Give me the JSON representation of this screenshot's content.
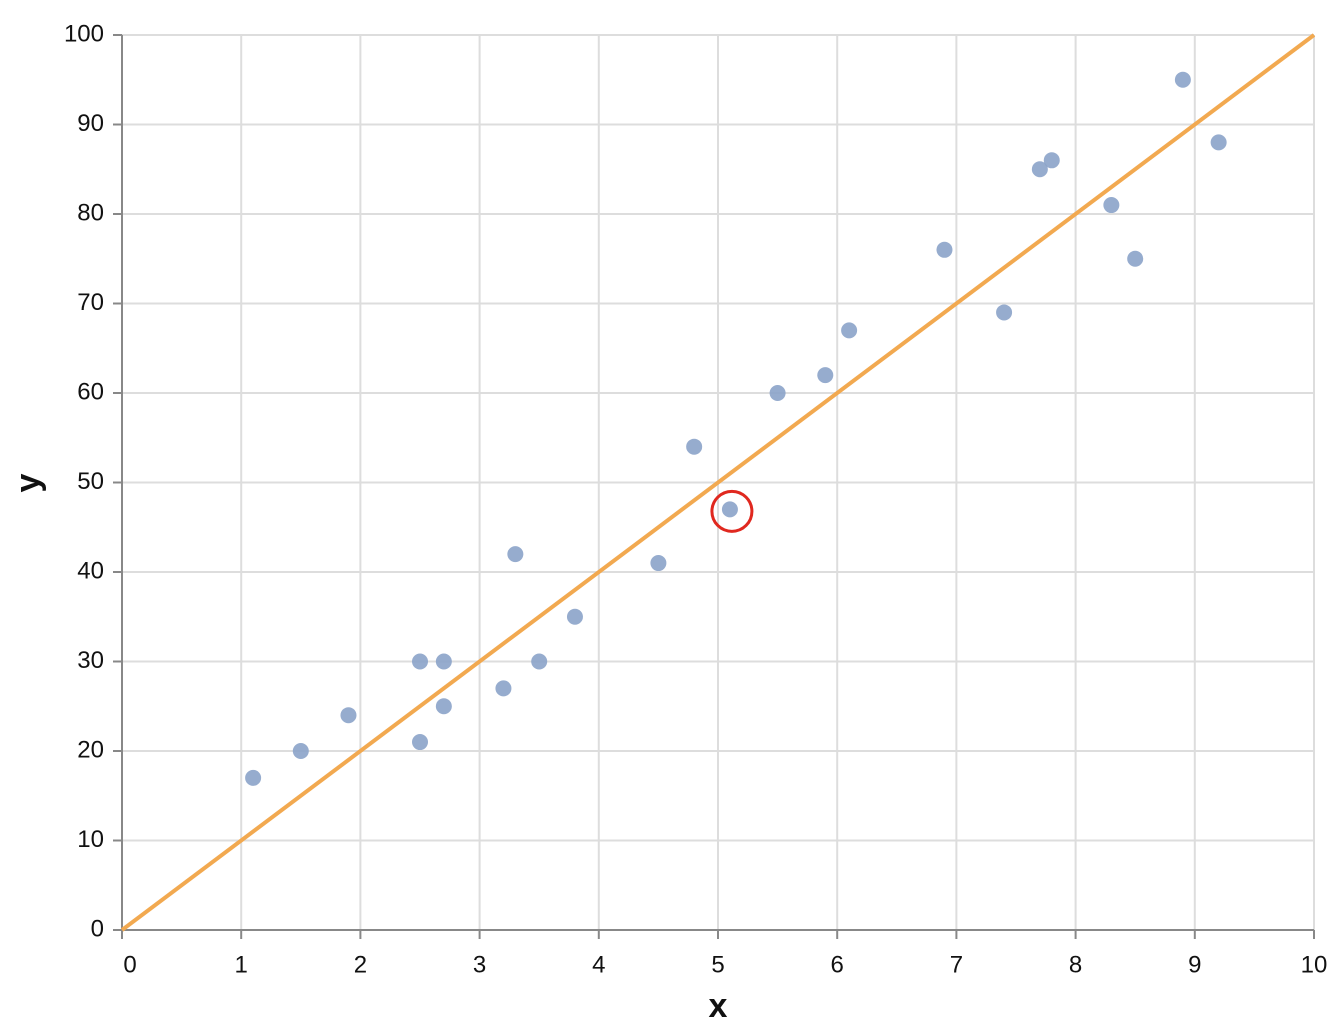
{
  "chart_data": {
    "type": "scatter",
    "x_label": "x",
    "y_label": "y",
    "x": [
      1.1,
      1.5,
      1.9,
      2.5,
      2.5,
      2.7,
      2.7,
      3.2,
      3.3,
      3.5,
      3.8,
      4.5,
      4.8,
      5.1,
      5.5,
      5.9,
      6.1,
      6.9,
      7.4,
      7.7,
      7.8,
      8.3,
      8.5,
      8.9,
      9.2
    ],
    "values": [
      17,
      20,
      24,
      30,
      21,
      30,
      25,
      27,
      42,
      30,
      35,
      41,
      54,
      47,
      60,
      62,
      67,
      76,
      69,
      85,
      86,
      81,
      75,
      95,
      88
    ],
    "color": "#8ba3c9",
    "fit_line": {
      "x": [
        0,
        10
      ],
      "values": [
        0,
        100
      ],
      "color": "#f2a950"
    },
    "highlighted_point": 13,
    "highlight_color": "#e0281f",
    "xlim": [
      0,
      10
    ],
    "ylim": [
      0,
      100
    ],
    "xticks": [
      0,
      1,
      2,
      3,
      4,
      5,
      6,
      7,
      8,
      9,
      10
    ],
    "yticks": [
      0,
      10,
      20,
      30,
      40,
      50,
      60,
      70,
      80,
      90,
      100
    ],
    "grid": true
  }
}
